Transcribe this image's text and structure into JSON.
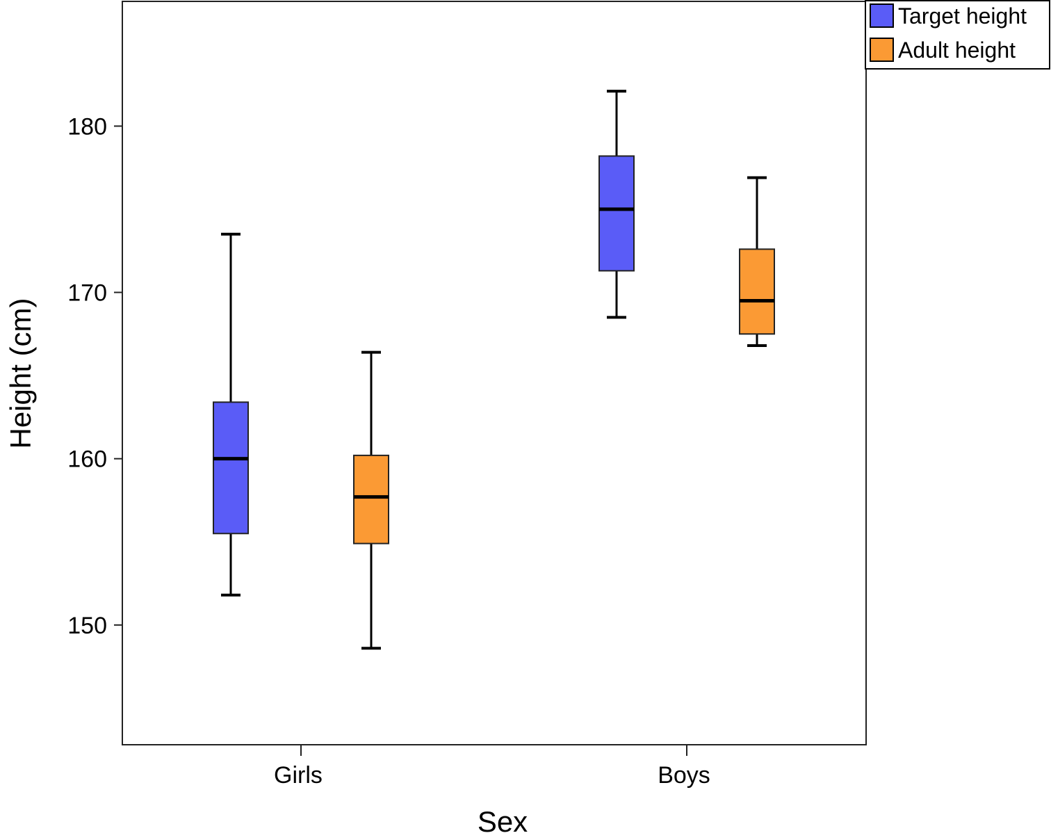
{
  "chart_data": {
    "type": "box",
    "xlabel": "Sex",
    "ylabel": "Height (cm)",
    "ylim": [
      142.8,
      187.5
    ],
    "yticks": [
      150,
      160,
      170,
      180
    ],
    "categories": [
      "Girls",
      "Boys"
    ],
    "legend_position": "top-right-outside",
    "grid": false,
    "series": [
      {
        "name": "Target height",
        "color": "#5a5cf7",
        "boxes": [
          {
            "whisker_low": 151.8,
            "q1": 155.5,
            "median": 160.0,
            "q3": 163.4,
            "whisker_high": 173.5
          },
          {
            "whisker_low": 168.5,
            "q1": 171.3,
            "median": 175.0,
            "q3": 178.2,
            "whisker_high": 182.1
          }
        ]
      },
      {
        "name": "Adult height",
        "color": "#fb9a34",
        "boxes": [
          {
            "whisker_low": 148.6,
            "q1": 154.9,
            "median": 157.7,
            "q3": 160.2,
            "whisker_high": 166.4
          },
          {
            "whisker_low": 166.8,
            "q1": 167.5,
            "median": 169.5,
            "q3": 172.6,
            "whisker_high": 176.9
          }
        ]
      }
    ]
  }
}
